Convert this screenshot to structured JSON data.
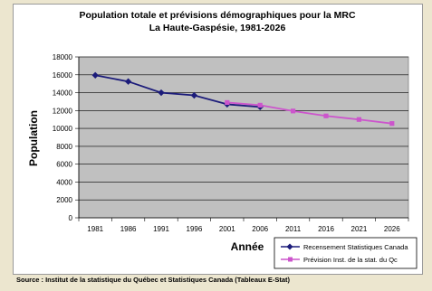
{
  "source_note": "Source : Institut de la statistique du Québec et Statistiques Canada (Tableaux E-Stat)",
  "chart_data": {
    "type": "line",
    "title_lines": [
      "Population totale et prévisions démographiques pour la MRC",
      "La Haute-Gaspésie, 1981-2026"
    ],
    "xlabel": "Année",
    "ylabel": "Population",
    "categories": [
      "1981",
      "1986",
      "1991",
      "1996",
      "2001",
      "2006",
      "2011",
      "2016",
      "2021",
      "2026"
    ],
    "y_ticks": [
      0,
      2000,
      4000,
      6000,
      8000,
      10000,
      12000,
      14000,
      16000,
      18000
    ],
    "ylim": [
      0,
      18000
    ],
    "grid": true,
    "legend_position": "bottom-right",
    "plot_background": "#c0c0c0",
    "series": [
      {
        "name": "Recensement Statistiques Canada",
        "color": "#1c1c7a",
        "marker": "diamond",
        "x": [
          "1981",
          "1986",
          "1991",
          "1996",
          "2001",
          "2006"
        ],
        "values": [
          15950,
          15250,
          14000,
          13700,
          12700,
          12400
        ]
      },
      {
        "name": "Prévision Inst. de la stat. du Qc",
        "color": "#cc55cc",
        "marker": "square",
        "x": [
          "2001",
          "2006",
          "2011",
          "2016",
          "2021",
          "2026"
        ],
        "values": [
          12900,
          12600,
          11950,
          11400,
          11000,
          10550
        ]
      }
    ]
  }
}
